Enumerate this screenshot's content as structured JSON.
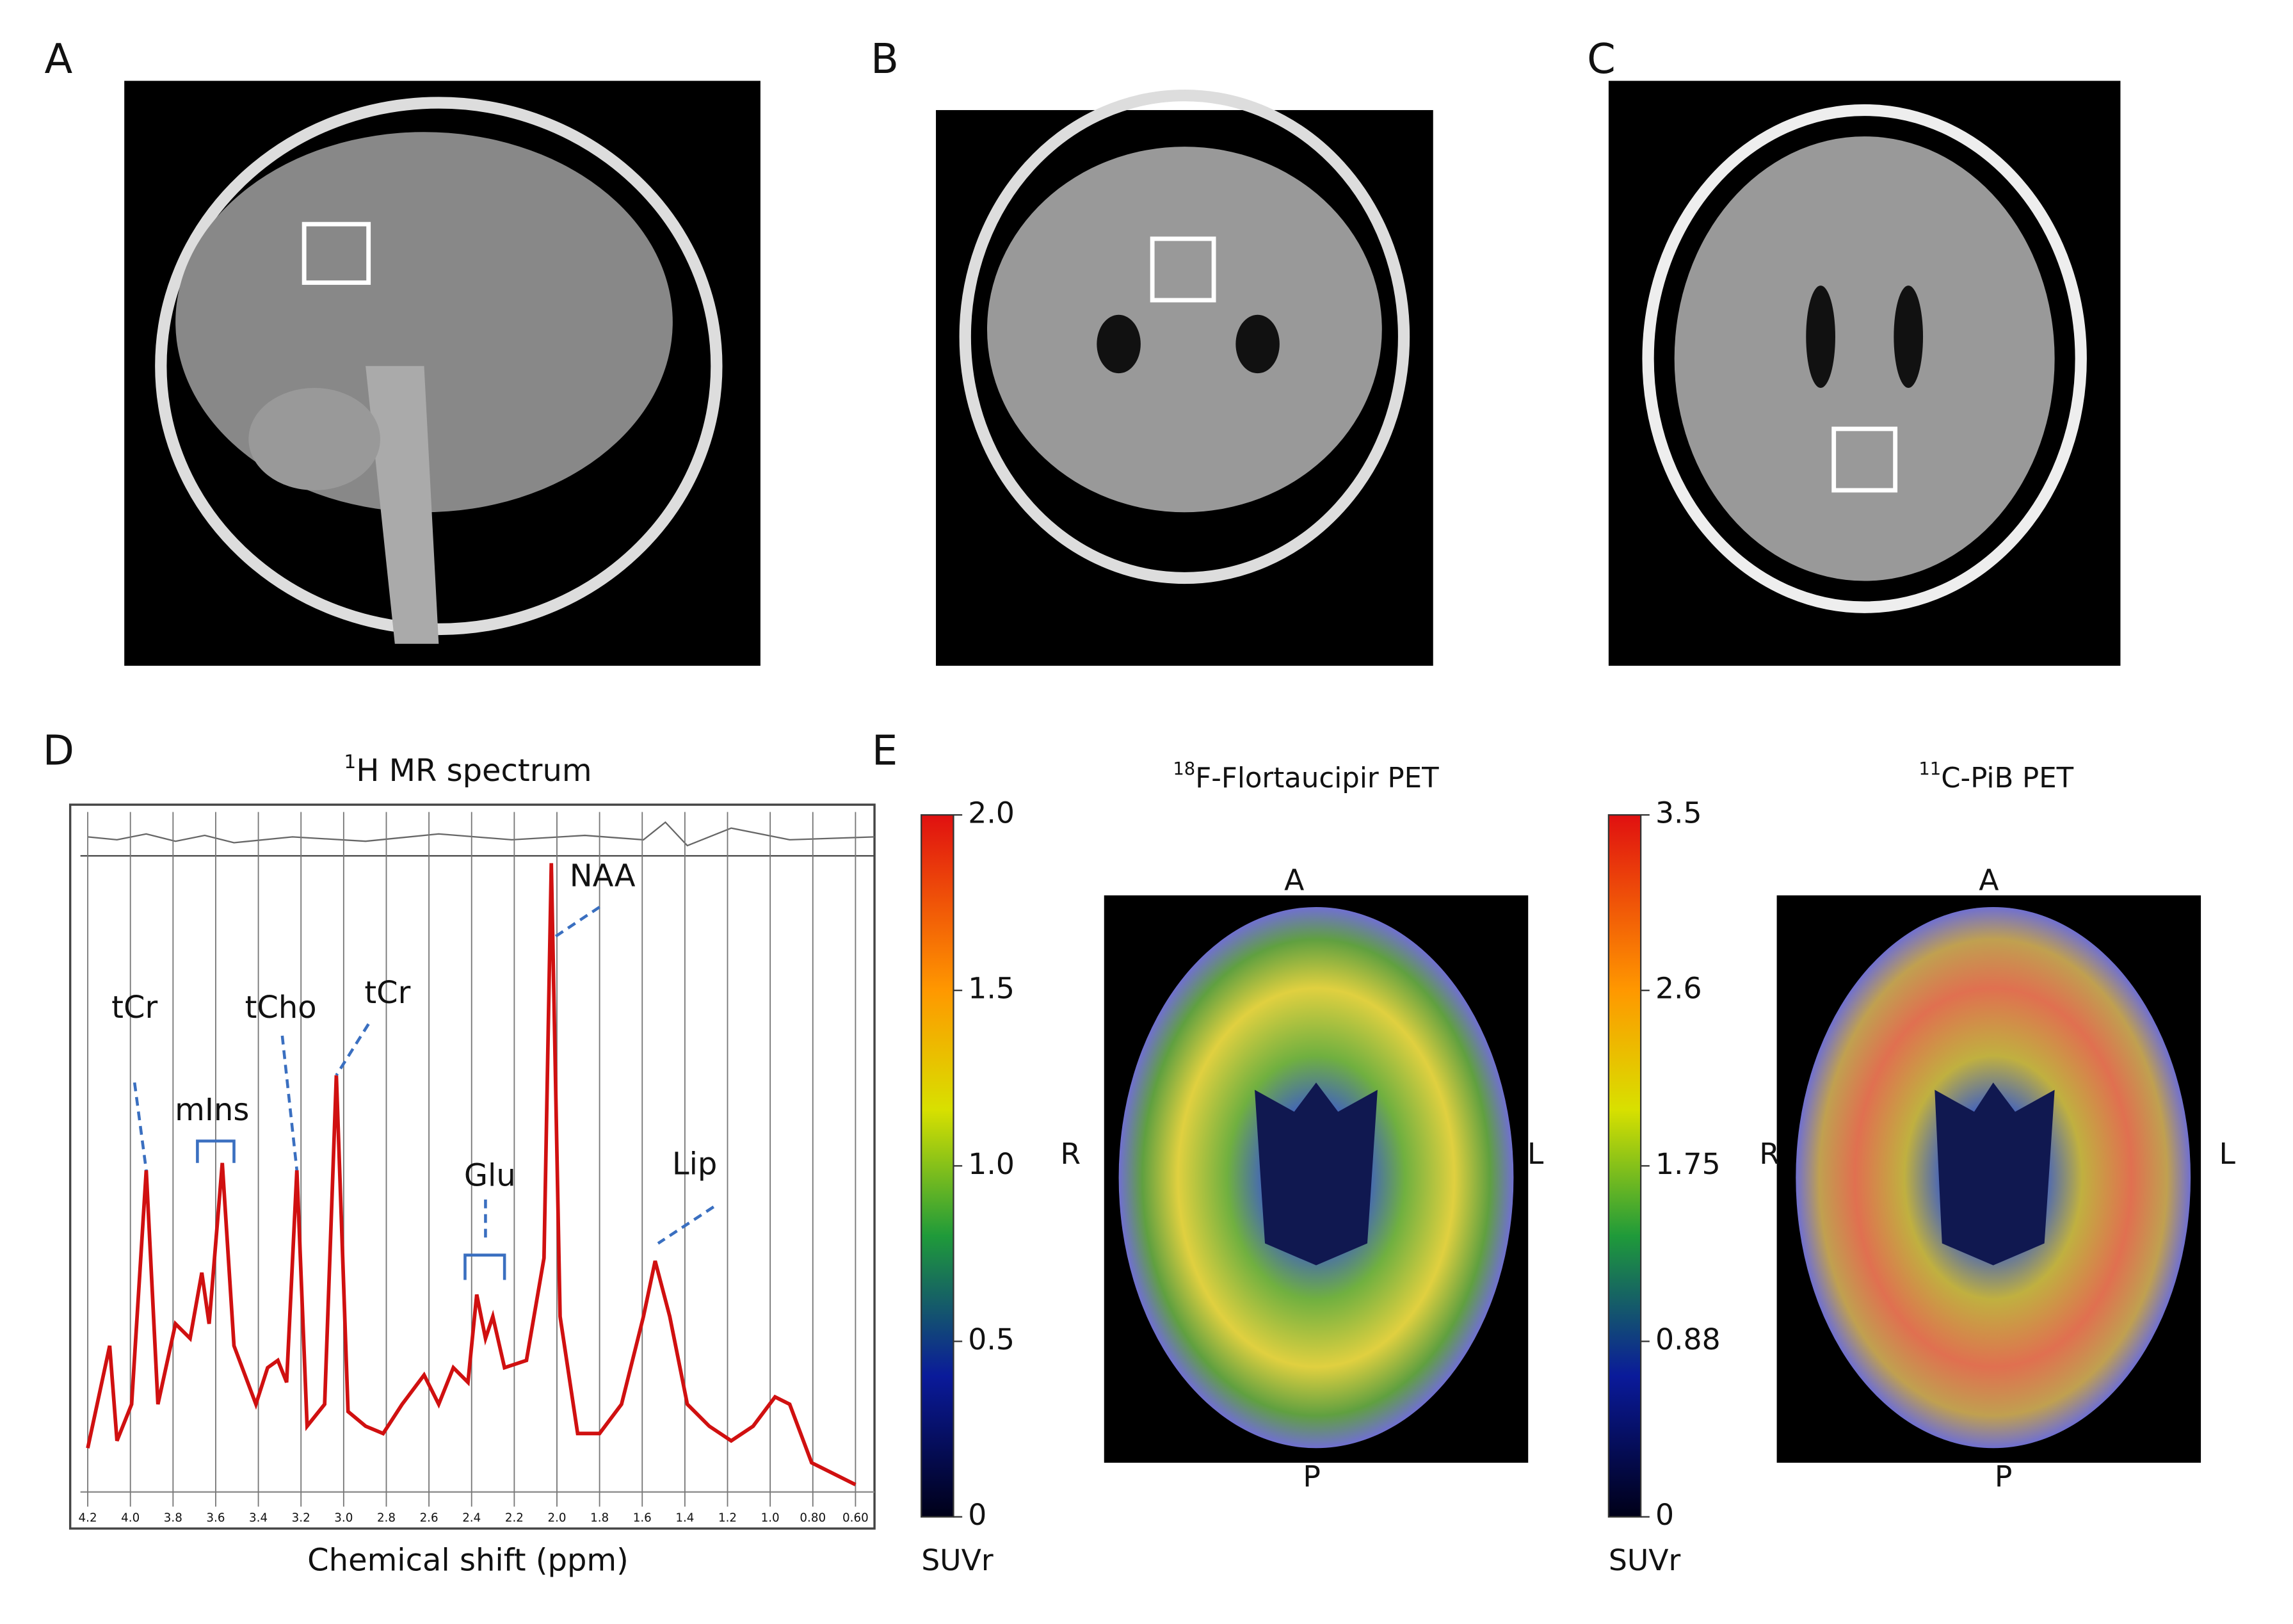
{
  "panels": {
    "a": {
      "label": "A"
    },
    "b": {
      "label": "B"
    },
    "c": {
      "label": "C"
    },
    "d": {
      "label": "D",
      "title_sup": "1",
      "title": "H MR spectrum",
      "xlabel": "Chemical shift (ppm)",
      "xticks": [
        "4.2",
        "4.0",
        "3.8",
        "3.6",
        "3.4",
        "3.2",
        "3.0",
        "2.8",
        "2.6",
        "2.4",
        "2.2",
        "2.0",
        "1.8",
        "1.6",
        "1.4",
        "1.2",
        "1.0",
        "0.80",
        "0.60"
      ],
      "peaks": [
        "tCr",
        "mIns",
        "tCho",
        "tCr",
        "Glu",
        "NAA",
        "Lip"
      ]
    },
    "e": {
      "label": "E",
      "pets": [
        {
          "title_sup": "18",
          "title": "F-Flortaucipir PET",
          "ticks": [
            "2.0",
            "1.5",
            "1.0",
            "0.5",
            "0"
          ],
          "unit": "SUVr",
          "anterior": "A",
          "posterior": "P",
          "right": "R",
          "left": "L"
        },
        {
          "title_sup": "11",
          "title": "C-PiB PET",
          "ticks": [
            "3.5",
            "2.6",
            "1.75",
            "0.88",
            "0"
          ],
          "unit": "SUVr",
          "anterior": "A",
          "posterior": "P",
          "right": "R",
          "left": "L"
        }
      ]
    }
  }
}
